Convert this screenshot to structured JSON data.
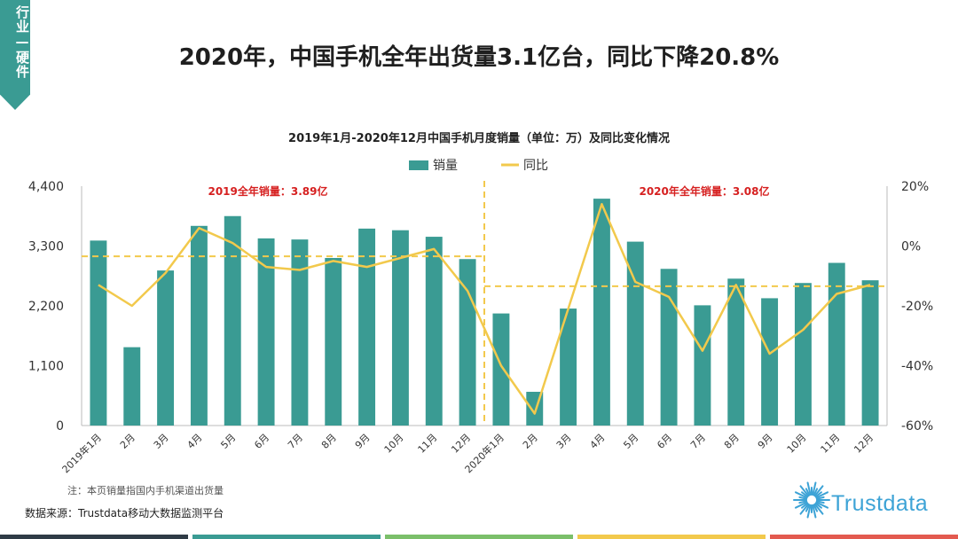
{
  "side_tab": "行业—硬件",
  "headline": "2020年，中国手机全年出货量3.1亿台，同比下降20.8%",
  "note": "注：本页销量指国内手机渠道出货量",
  "source": "数据来源：Trustdata移动大数据监测平台",
  "logo_text": "Trustdata",
  "footer_colors": [
    "#2f3b46",
    "#3a9b93",
    "#7bbf6a",
    "#f2c94c",
    "#e35a4f"
  ],
  "colors": {
    "bar": "#3a9b93",
    "line": "#f2c94c",
    "dashed": "#f2c94c",
    "annotation": "#d62020"
  },
  "chart_data": {
    "type": "bar",
    "title": "2019年1月-2020年12月中国手机月度销量（单位：万）及同比变化情况",
    "categories": [
      "2019年1月",
      "2月",
      "3月",
      "4月",
      "5月",
      "6月",
      "7月",
      "8月",
      "9月",
      "10月",
      "11月",
      "12月",
      "2020年1月",
      "2月",
      "3月",
      "4月",
      "5月",
      "6月",
      "7月",
      "8月",
      "9月",
      "10月",
      "11月",
      "12月"
    ],
    "series": [
      {
        "name": "销量",
        "type": "bar",
        "axis": "left",
        "values": [
          3400,
          1440,
          2850,
          3670,
          3850,
          3440,
          3420,
          3080,
          3620,
          3590,
          3470,
          3060,
          2060,
          620,
          2150,
          4170,
          3380,
          2880,
          2210,
          2700,
          2340,
          2620,
          2990,
          2670
        ]
      },
      {
        "name": "同比",
        "type": "line",
        "axis": "right",
        "values": [
          -13,
          -20,
          -9,
          6,
          1,
          -7,
          -8,
          -5,
          -7,
          -4,
          -1,
          -15,
          -40,
          -56,
          -21,
          14,
          -12,
          -17,
          -35,
          -13,
          -36,
          -28,
          -16,
          -13
        ]
      }
    ],
    "y_left": {
      "ylim": [
        0,
        4400
      ],
      "ticks": [
        "0",
        "1,100",
        "2,200",
        "3,300",
        "4,400"
      ]
    },
    "y_right": {
      "ylim": [
        -60,
        20
      ],
      "ticks": [
        "-60%",
        "-40%",
        "-20%",
        "0%",
        "20%"
      ]
    },
    "reference_lines": [
      {
        "axis": "left",
        "value": 3110,
        "from_index": 0,
        "to_index": 11
      },
      {
        "axis": "left",
        "value": 2560,
        "from_index": 12,
        "to_index": 23
      }
    ],
    "annotations": [
      "2019全年销量：3.89亿",
      "2020年全年销量：3.08亿"
    ],
    "legend_position": "top"
  }
}
